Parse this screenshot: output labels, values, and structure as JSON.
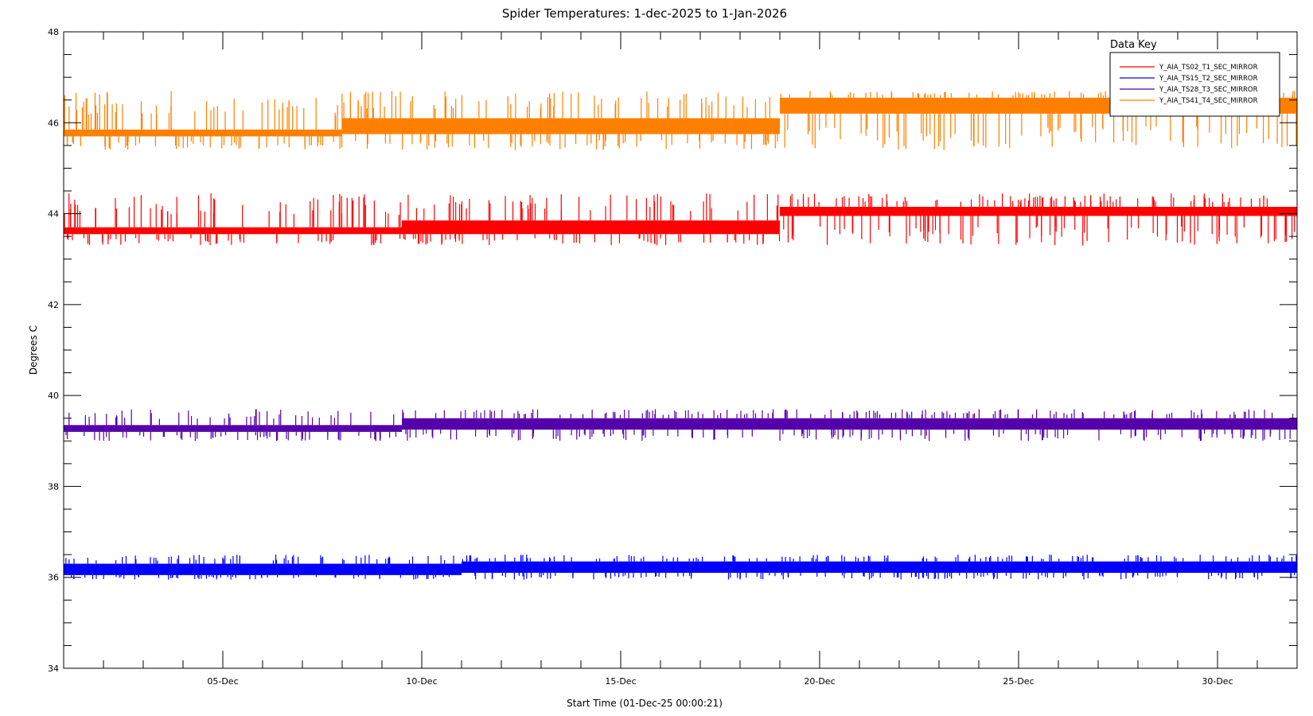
{
  "chart_data": {
    "type": "line",
    "title": "Spider Temperatures: 1-dec-2025 to 1-Jan-2026",
    "xlabel": "Start Time (01-Dec-25 00:00:21)",
    "ylabel": "Degrees C",
    "xlim": [
      1,
      32
    ],
    "ylim": [
      34,
      48
    ],
    "x_ticks": [
      {
        "value": 5,
        "label": "05-Dec"
      },
      {
        "value": 10,
        "label": "10-Dec"
      },
      {
        "value": 15,
        "label": "15-Dec"
      },
      {
        "value": 20,
        "label": "20-Dec"
      },
      {
        "value": 25,
        "label": "25-Dec"
      },
      {
        "value": 30,
        "label": "30-Dec"
      }
    ],
    "y_ticks": [
      34,
      36,
      38,
      40,
      42,
      44,
      46,
      48
    ],
    "y_tick_labels": [
      "34",
      "36",
      "38",
      "40",
      "42",
      "44",
      "46",
      "48"
    ],
    "grid": false,
    "legend": {
      "title": "Data Key",
      "placement": "top-right",
      "entries": [
        {
          "name": "Y_AIA_TS02_T1_SEC_MIRROR",
          "color": "#ff0000"
        },
        {
          "name": "Y_AIA_TS15_T2_SEC_MIRROR",
          "color": "#0000ff"
        },
        {
          "name": "Y_AIA_TS28_T3_SEC_MIRROR",
          "color": "#5500aa"
        },
        {
          "name": "Y_AIA_TS41_T4_SEC_MIRROR",
          "color": "#ff8000"
        }
      ]
    },
    "series": [
      {
        "name": "Y_AIA_TS02_T1_SEC_MIRROR",
        "color": "#ff0000",
        "segments": [
          {
            "x_start": 1,
            "x_end": 9.5,
            "low": 43.55,
            "high": 43.7
          },
          {
            "x_start": 9.5,
            "x_end": 19,
            "low": 43.55,
            "high": 43.85
          },
          {
            "x_start": 19,
            "x_end": 32,
            "low": 43.95,
            "high": 44.15
          }
        ],
        "noise_range": [
          43.3,
          44.45
        ]
      },
      {
        "name": "Y_AIA_TS15_T2_SEC_MIRROR",
        "color": "#0000ff",
        "segments": [
          {
            "x_start": 1,
            "x_end": 11,
            "low": 36.05,
            "high": 36.3
          },
          {
            "x_start": 11,
            "x_end": 32,
            "low": 36.1,
            "high": 36.35
          }
        ],
        "noise_range": [
          35.95,
          36.5
        ]
      },
      {
        "name": "Y_AIA_TS28_T3_SEC_MIRROR",
        "color": "#5500aa",
        "segments": [
          {
            "x_start": 1,
            "x_end": 9.5,
            "low": 39.2,
            "high": 39.35
          },
          {
            "x_start": 9.5,
            "x_end": 32,
            "low": 39.25,
            "high": 39.5
          }
        ],
        "noise_range": [
          39.0,
          39.7
        ]
      },
      {
        "name": "Y_AIA_TS41_T4_SEC_MIRROR",
        "color": "#ff8000",
        "segments": [
          {
            "x_start": 1,
            "x_end": 8,
            "low": 45.7,
            "high": 45.85
          },
          {
            "x_start": 8,
            "x_end": 19,
            "low": 45.75,
            "high": 46.1
          },
          {
            "x_start": 19,
            "x_end": 32,
            "low": 46.2,
            "high": 46.55
          }
        ],
        "noise_range": [
          45.4,
          46.7
        ]
      }
    ]
  }
}
